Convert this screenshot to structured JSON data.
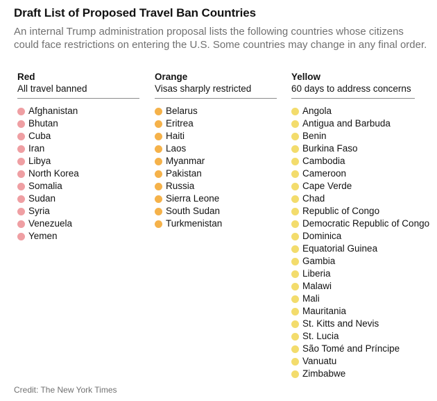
{
  "title": "Draft List of Proposed Travel Ban Countries",
  "subtitle": "An internal Trump administration proposal lists the following countries whose citizens could face restrictions on entering the U.S. Some countries may change in any final order.",
  "credit": "Credit: The New York Times",
  "colors": {
    "red": "#ef9fa3",
    "orange": "#f5b24a",
    "yellow": "#f3dc6c"
  },
  "columns": {
    "red": {
      "heading": "Red",
      "description": "All travel banned",
      "countries": [
        "Afghanistan",
        "Bhutan",
        "Cuba",
        "Iran",
        "Libya",
        "North Korea",
        "Somalia",
        "Sudan",
        "Syria",
        "Venezuela",
        "Yemen"
      ]
    },
    "orange": {
      "heading": "Orange",
      "description": "Visas sharply restricted",
      "countries": [
        "Belarus",
        "Eritrea",
        "Haiti",
        "Laos",
        "Myanmar",
        "Pakistan",
        "Russia",
        "Sierra Leone",
        "South Sudan",
        "Turkmenistan"
      ]
    },
    "yellow": {
      "heading": "Yellow",
      "description": "60 days to address concerns",
      "countries": [
        "Angola",
        "Antigua and Barbuda",
        "Benin",
        "Burkina Faso",
        "Cambodia",
        "Cameroon",
        "Cape Verde",
        "Chad",
        "Republic of Congo",
        "Democratic Republic of Congo",
        "Dominica",
        "Equatorial Guinea",
        "Gambia",
        "Liberia",
        "Malawi",
        "Mali",
        "Mauritania",
        "St. Kitts and Nevis",
        "St. Lucia",
        "São Tomé and Príncipe",
        "Vanuatu",
        "Zimbabwe"
      ]
    }
  }
}
